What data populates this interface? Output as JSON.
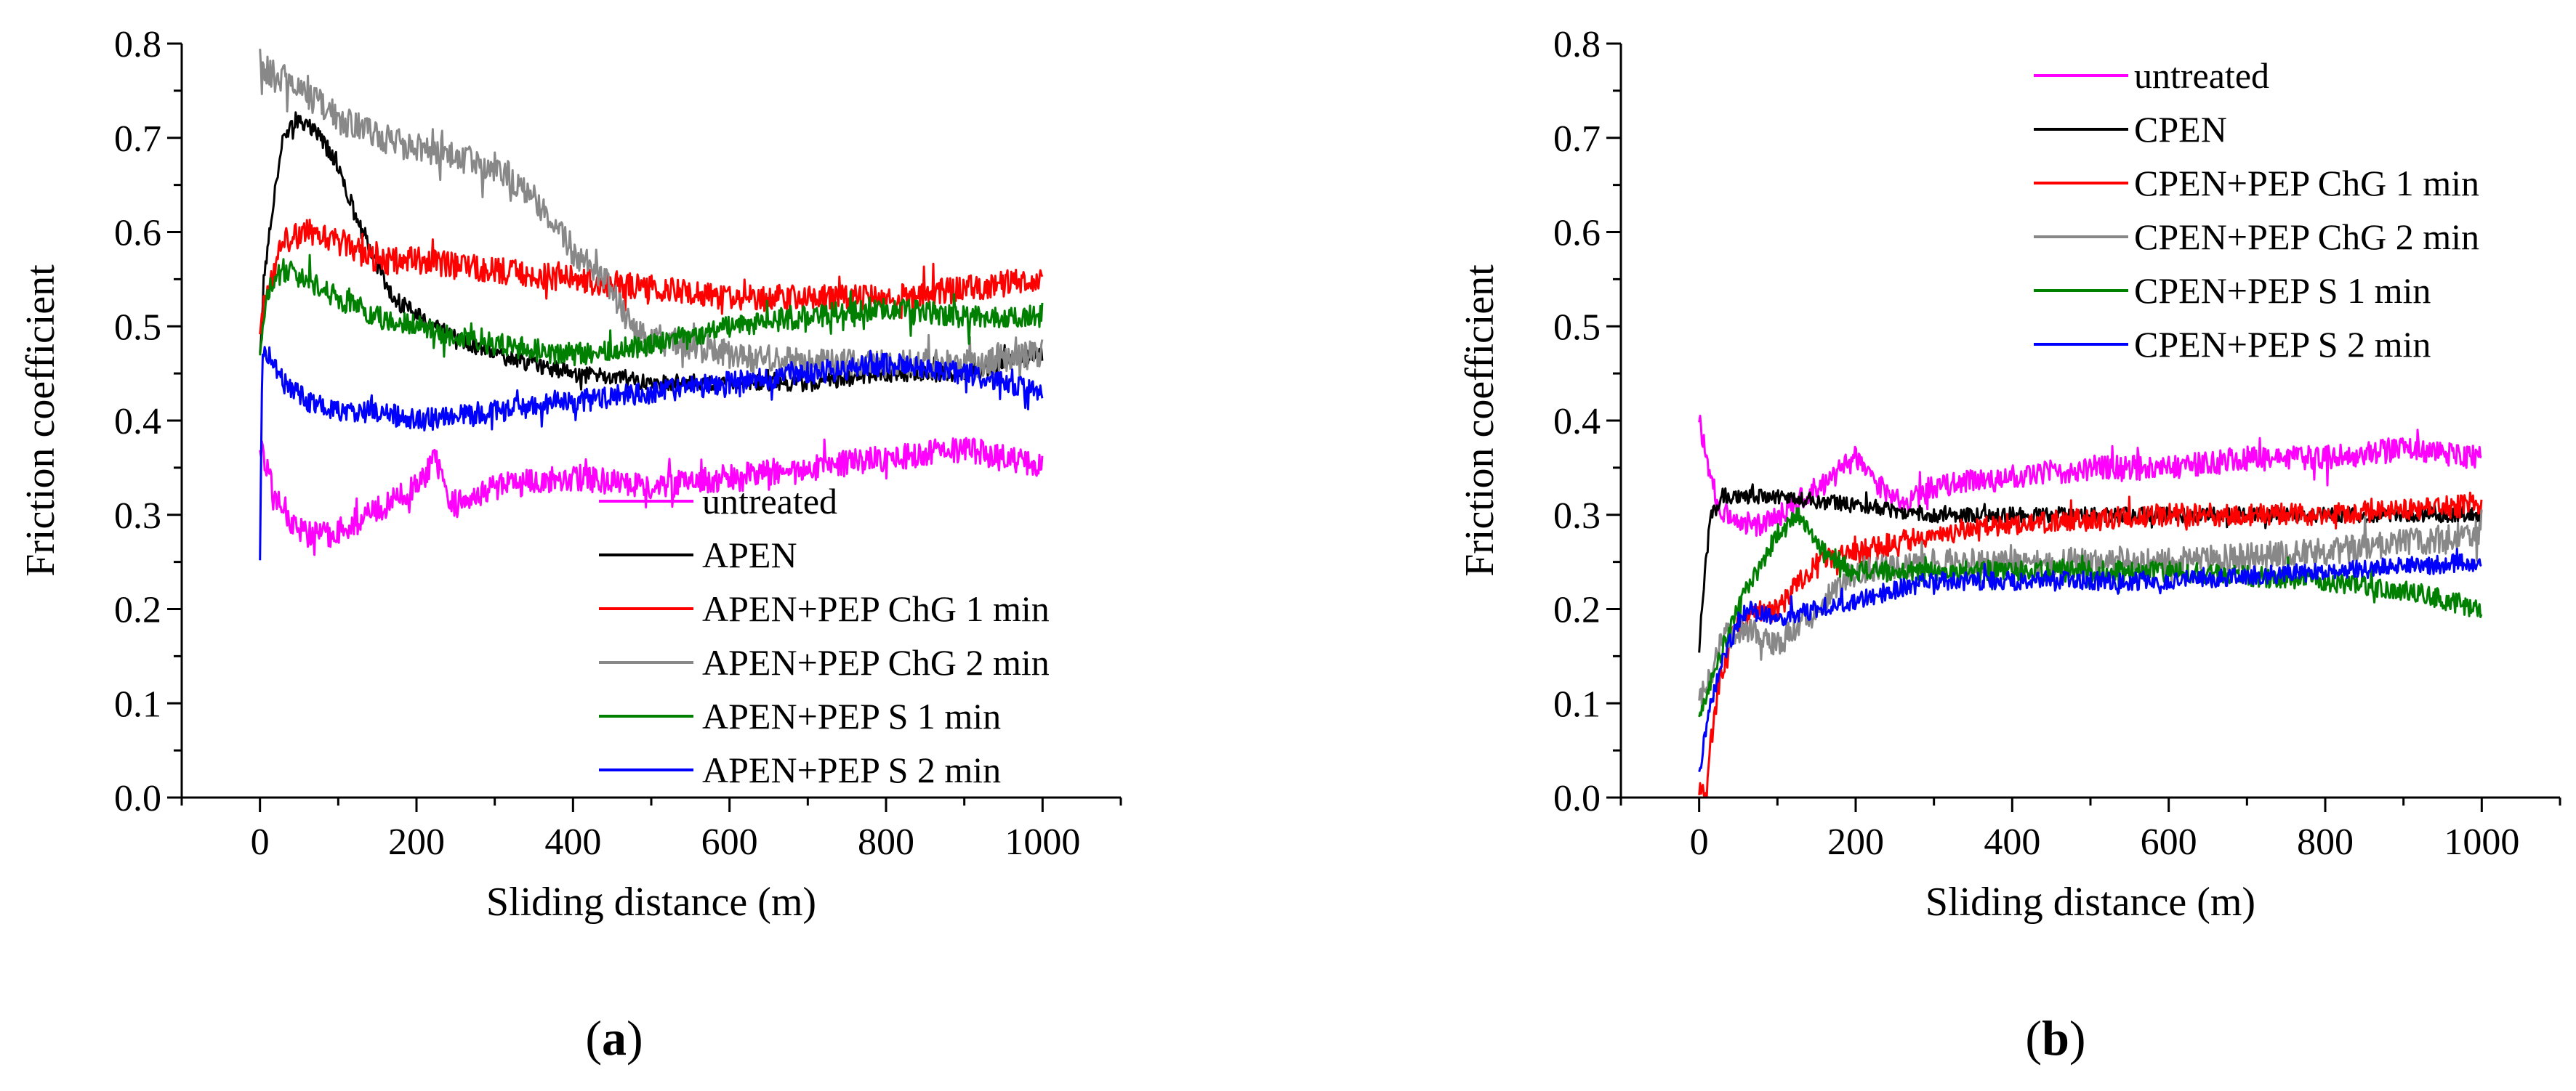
{
  "chart_data": [
    {
      "type": "line",
      "panel_label": "(a)",
      "panel_letter": "a",
      "xlabel": "Sliding distance (m)",
      "ylabel": "Friction coefficient",
      "xlim": [
        -100,
        1100
      ],
      "ylim": [
        0,
        0.8
      ],
      "xticks": [
        0,
        200,
        400,
        600,
        800,
        1000
      ],
      "yticks": [
        0.0,
        0.1,
        0.2,
        0.3,
        0.4,
        0.5,
        0.6,
        0.7,
        0.8
      ],
      "ytick_labels": [
        "0.0",
        "0.1",
        "0.2",
        "0.3",
        "0.4",
        "0.5",
        "0.6",
        "0.7",
        "0.8"
      ],
      "legend_position": "bottom-right",
      "series": [
        {
          "name": "untreated",
          "color": "#ff00ff",
          "noise": 0.014,
          "x": [
            0,
            5,
            15,
            30,
            60,
            90,
            120,
            160,
            200,
            225,
            240,
            300,
            400,
            500,
            600,
            700,
            800,
            900,
            1000
          ],
          "y": [
            0.38,
            0.36,
            0.33,
            0.3,
            0.28,
            0.28,
            0.29,
            0.31,
            0.33,
            0.36,
            0.31,
            0.33,
            0.34,
            0.33,
            0.34,
            0.35,
            0.36,
            0.37,
            0.35
          ]
        },
        {
          "name": "APEN",
          "color": "#000000",
          "noise": 0.009,
          "x": [
            0,
            5,
            15,
            30,
            45,
            70,
            100,
            130,
            170,
            220,
            300,
            400,
            500,
            600,
            700,
            800,
            900,
            1000
          ],
          "y": [
            0.47,
            0.55,
            0.62,
            0.7,
            0.72,
            0.71,
            0.67,
            0.6,
            0.53,
            0.5,
            0.47,
            0.45,
            0.44,
            0.44,
            0.44,
            0.45,
            0.45,
            0.47
          ]
        },
        {
          "name": "APEN+PEP ChG 1 min",
          "color": "#ff0000",
          "noise": 0.014,
          "x": [
            0,
            10,
            30,
            60,
            100,
            150,
            200,
            300,
            400,
            500,
            600,
            700,
            800,
            900,
            1000
          ],
          "y": [
            0.5,
            0.54,
            0.59,
            0.6,
            0.59,
            0.57,
            0.57,
            0.56,
            0.55,
            0.54,
            0.53,
            0.53,
            0.53,
            0.54,
            0.55
          ]
        },
        {
          "name": "APEN+PEP ChG 2 min",
          "color": "#888888",
          "noise": 0.016,
          "x": [
            0,
            10,
            40,
            100,
            150,
            200,
            300,
            350,
            400,
            440,
            480,
            550,
            600,
            700,
            800,
            900,
            1000
          ],
          "y": [
            0.78,
            0.77,
            0.76,
            0.72,
            0.7,
            0.69,
            0.67,
            0.64,
            0.58,
            0.55,
            0.49,
            0.48,
            0.47,
            0.46,
            0.46,
            0.46,
            0.47
          ]
        },
        {
          "name": "APEN+PEP S 1 min",
          "color": "#008000",
          "noise": 0.012,
          "x": [
            0,
            10,
            30,
            60,
            100,
            150,
            200,
            300,
            400,
            500,
            600,
            700,
            800,
            900,
            1000
          ],
          "y": [
            0.48,
            0.54,
            0.56,
            0.55,
            0.53,
            0.51,
            0.5,
            0.48,
            0.47,
            0.48,
            0.5,
            0.51,
            0.52,
            0.51,
            0.51
          ]
        },
        {
          "name": "APEN+PEP S 2 min",
          "color": "#0000ff",
          "noise": 0.012,
          "x": [
            0,
            3,
            10,
            30,
            60,
            100,
            150,
            200,
            300,
            400,
            500,
            600,
            700,
            800,
            900,
            1000
          ],
          "y": [
            0.24,
            0.48,
            0.47,
            0.44,
            0.42,
            0.41,
            0.41,
            0.4,
            0.41,
            0.42,
            0.43,
            0.44,
            0.45,
            0.46,
            0.45,
            0.43
          ]
        }
      ]
    },
    {
      "type": "line",
      "panel_label": "(b)",
      "panel_letter": "b",
      "xlabel": "Sliding distance (m)",
      "ylabel": "Friction coefficient",
      "xlim": [
        -100,
        1100
      ],
      "ylim": [
        0,
        0.8
      ],
      "xticks": [
        0,
        200,
        400,
        600,
        800,
        1000
      ],
      "yticks": [
        0.0,
        0.1,
        0.2,
        0.3,
        0.4,
        0.5,
        0.6,
        0.7,
        0.8
      ],
      "ytick_labels": [
        "0.0",
        "0.1",
        "0.2",
        "0.3",
        "0.4",
        "0.5",
        "0.6",
        "0.7",
        "0.8"
      ],
      "legend_position": "top-right",
      "series": [
        {
          "name": "untreated",
          "color": "#ff00ff",
          "noise": 0.013,
          "x": [
            0,
            10,
            25,
            50,
            80,
            120,
            170,
            200,
            230,
            260,
            300,
            400,
            500,
            600,
            700,
            800,
            900,
            1000
          ],
          "y": [
            0.4,
            0.36,
            0.31,
            0.29,
            0.29,
            0.31,
            0.34,
            0.36,
            0.33,
            0.31,
            0.33,
            0.34,
            0.35,
            0.35,
            0.36,
            0.36,
            0.37,
            0.36
          ]
        },
        {
          "name": "CPEN",
          "color": "#000000",
          "noise": 0.008,
          "x": [
            0,
            5,
            15,
            30,
            60,
            100,
            200,
            300,
            400,
            500,
            600,
            700,
            800,
            900,
            1000
          ],
          "y": [
            0.16,
            0.22,
            0.3,
            0.32,
            0.32,
            0.32,
            0.31,
            0.3,
            0.3,
            0.3,
            0.3,
            0.3,
            0.3,
            0.3,
            0.3
          ]
        },
        {
          "name": "CPEN+PEP ChG 1 min",
          "color": "#ff0000",
          "noise": 0.012,
          "x": [
            0,
            10,
            15,
            25,
            40,
            60,
            100,
            150,
            200,
            300,
            400,
            600,
            800,
            1000
          ],
          "y": [
            0.01,
            0.01,
            0.06,
            0.12,
            0.17,
            0.19,
            0.2,
            0.25,
            0.26,
            0.28,
            0.29,
            0.3,
            0.3,
            0.31
          ]
        },
        {
          "name": "CPEN+PEP ChG 2 min",
          "color": "#888888",
          "noise": 0.015,
          "x": [
            0,
            10,
            30,
            60,
            100,
            150,
            200,
            300,
            400,
            600,
            800,
            900,
            1000
          ],
          "y": [
            0.1,
            0.12,
            0.17,
            0.18,
            0.16,
            0.2,
            0.24,
            0.25,
            0.25,
            0.25,
            0.26,
            0.27,
            0.28
          ]
        },
        {
          "name": "CPEN+PEP S 1 min",
          "color": "#008000",
          "noise": 0.011,
          "x": [
            0,
            10,
            30,
            60,
            100,
            130,
            160,
            200,
            300,
            400,
            600,
            800,
            900,
            1000
          ],
          "y": [
            0.09,
            0.11,
            0.16,
            0.22,
            0.28,
            0.3,
            0.26,
            0.24,
            0.24,
            0.24,
            0.24,
            0.23,
            0.22,
            0.2
          ]
        },
        {
          "name": "CPEN+PEP S 2 min",
          "color": "#0000ff",
          "noise": 0.01,
          "x": [
            0,
            5,
            15,
            30,
            60,
            100,
            150,
            200,
            300,
            400,
            600,
            800,
            1000
          ],
          "y": [
            0.02,
            0.05,
            0.1,
            0.15,
            0.2,
            0.19,
            0.2,
            0.21,
            0.23,
            0.23,
            0.23,
            0.24,
            0.25
          ]
        }
      ]
    }
  ]
}
